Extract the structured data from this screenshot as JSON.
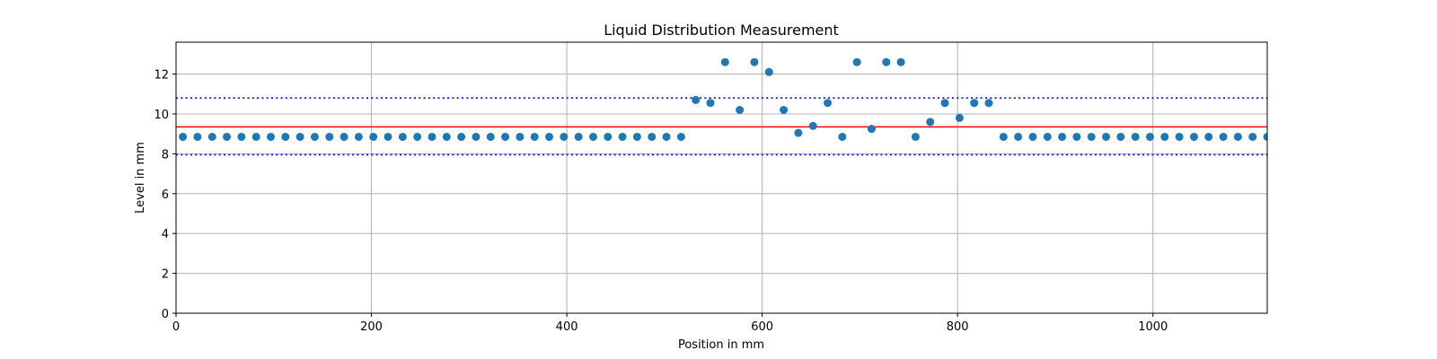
{
  "chart_data": {
    "type": "scatter",
    "title": "Liquid Distribution Measurement",
    "xlabel": "Position in mm",
    "ylabel": "Level in mm",
    "xlim": [
      0,
      1117
    ],
    "ylim": [
      0,
      13.6
    ],
    "xticks": [
      0,
      200,
      400,
      600,
      800,
      1000
    ],
    "yticks": [
      0,
      2,
      4,
      6,
      8,
      10,
      12
    ],
    "grid": true,
    "series": [
      {
        "color": "#1f77b4",
        "x": [
          7,
          22,
          37,
          52,
          67,
          82,
          97,
          112,
          127,
          142,
          157,
          172,
          187,
          202,
          217,
          232,
          247,
          262,
          277,
          292,
          307,
          322,
          337,
          352,
          367,
          382,
          397,
          412,
          427,
          442,
          457,
          472,
          487,
          502,
          517,
          532,
          547,
          562,
          577,
          592,
          607,
          622,
          637,
          652,
          667,
          682,
          697,
          712,
          727,
          742,
          757,
          772,
          787,
          802,
          817,
          832,
          847,
          862,
          877,
          892,
          907,
          922,
          937,
          952,
          967,
          982,
          997,
          1012,
          1027,
          1042,
          1057,
          1072,
          1087,
          1102,
          1117
        ],
        "y": [
          8.85,
          8.85,
          8.85,
          8.85,
          8.85,
          8.85,
          8.85,
          8.85,
          8.85,
          8.85,
          8.85,
          8.85,
          8.85,
          8.85,
          8.85,
          8.85,
          8.85,
          8.85,
          8.85,
          8.85,
          8.85,
          8.85,
          8.85,
          8.85,
          8.85,
          8.85,
          8.85,
          8.85,
          8.85,
          8.85,
          8.85,
          8.85,
          8.85,
          8.85,
          8.85,
          10.7,
          10.55,
          12.6,
          10.2,
          12.6,
          12.1,
          10.2,
          9.05,
          9.4,
          10.55,
          8.85,
          12.6,
          9.25,
          12.6,
          12.6,
          8.85,
          9.6,
          10.55,
          9.8,
          10.55,
          10.55,
          8.85,
          8.85,
          8.85,
          8.85,
          8.85,
          8.85,
          8.85,
          8.85,
          8.85,
          8.85,
          8.85,
          8.85,
          8.85,
          8.85,
          8.85,
          8.85,
          8.85,
          8.85,
          8.85
        ]
      }
    ],
    "reference_lines": [
      {
        "y": 9.35,
        "color": "#ff0000",
        "style": "solid"
      },
      {
        "y": 10.8,
        "color": "#0000ff",
        "style": "dotted"
      },
      {
        "y": 7.95,
        "color": "#0000ff",
        "style": "dotted"
      }
    ]
  }
}
